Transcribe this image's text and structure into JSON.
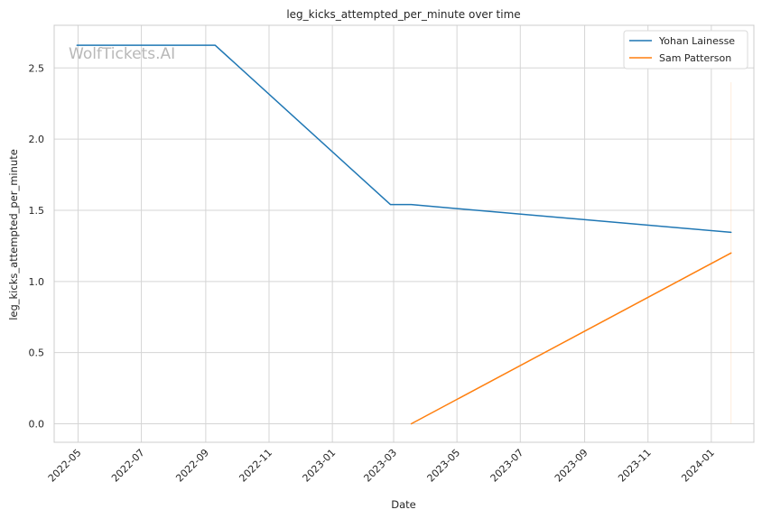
{
  "chart_data": {
    "type": "line",
    "title": "leg_kicks_attempted_per_minute over time",
    "xlabel": "Date",
    "ylabel": "leg_kicks_attempted_per_minute",
    "watermark": "WolfTickets.AI",
    "x_tick_labels": [
      "2022-05",
      "2022-07",
      "2022-09",
      "2022-11",
      "2023-01",
      "2023-03",
      "2023-05",
      "2023-07",
      "2023-09",
      "2023-11",
      "2024-01"
    ],
    "x_ticks": [
      "2022-05-01",
      "2022-07-01",
      "2022-09-01",
      "2022-11-01",
      "2023-01-01",
      "2023-03-01",
      "2023-05-01",
      "2023-07-01",
      "2023-09-01",
      "2023-11-01",
      "2024-01-01"
    ],
    "xlim": [
      "2022-04-08",
      "2024-02-11"
    ],
    "y_ticks": [
      0.0,
      0.5,
      1.0,
      1.5,
      2.0,
      2.5
    ],
    "y_tick_labels": [
      "0.0",
      "0.5",
      "1.0",
      "1.5",
      "2.0",
      "2.5"
    ],
    "ylim": [
      -0.13,
      2.8
    ],
    "grid": true,
    "legend_position": "top-right",
    "series": [
      {
        "name": "Yohan Lainesse",
        "color": "#1f77b4",
        "points": [
          {
            "x": "2022-04-30",
            "y": 2.66
          },
          {
            "x": "2022-09-10",
            "y": 2.66
          },
          {
            "x": "2023-02-26",
            "y": 1.54
          },
          {
            "x": "2023-03-18",
            "y": 1.54
          },
          {
            "x": "2024-01-20",
            "y": 1.345
          }
        ]
      },
      {
        "name": "Sam Patterson",
        "color": "#ff7f0e",
        "points": [
          {
            "x": "2023-03-18",
            "y": 0.0
          },
          {
            "x": "2024-01-20",
            "y": 1.2
          }
        ]
      }
    ],
    "faint_vertical_line": {
      "x": "2024-01-20",
      "y_range": [
        0.0,
        2.4
      ],
      "color": "#ff7f0e"
    }
  }
}
